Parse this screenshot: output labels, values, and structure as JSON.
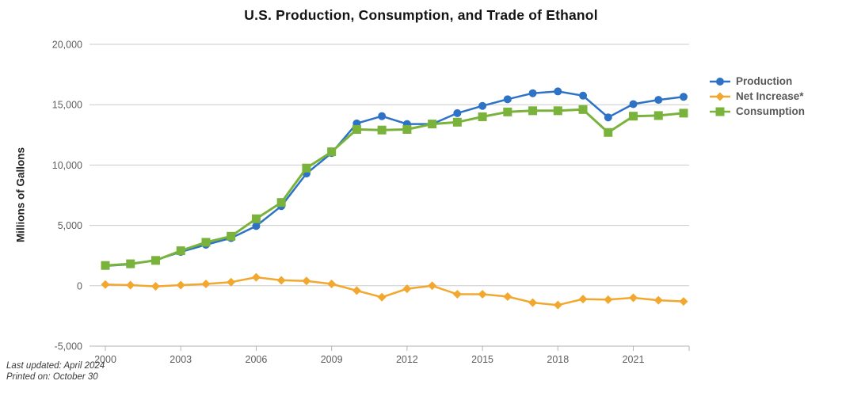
{
  "title": "U.S. Production, Consumption, and Trade of Ethanol",
  "y_axis_label": "Millions of Gallons",
  "footer": {
    "line1": "Last updated: April 2024",
    "line2": "Printed on: October 30"
  },
  "chart_data": {
    "type": "line",
    "title": "U.S. Production, Consumption, and Trade of Ethanol",
    "xlabel": "",
    "ylabel": "Millions of Gallons",
    "grid": true,
    "legend_position": "right",
    "ylim": [
      -5000,
      20000
    ],
    "y_ticks": [
      -5000,
      0,
      5000,
      10000,
      15000,
      20000
    ],
    "x_ticks": [
      2000,
      2003,
      2006,
      2009,
      2012,
      2015,
      2018,
      2021
    ],
    "x": [
      2000,
      2001,
      2002,
      2003,
      2004,
      2005,
      2006,
      2007,
      2008,
      2009,
      2010,
      2011,
      2012,
      2013,
      2014,
      2015,
      2016,
      2017,
      2018,
      2019,
      2020,
      2021,
      2022,
      2023
    ],
    "series": [
      {
        "name": "Production",
        "color": "#2E72C6",
        "marker": "circle",
        "values": [
          1650,
          1780,
          2130,
          2800,
          3400,
          3950,
          4950,
          6600,
          9300,
          11000,
          13450,
          14050,
          13400,
          13400,
          14300,
          14900,
          15450,
          15950,
          16100,
          15750,
          13950,
          15050,
          15400,
          15650
        ]
      },
      {
        "name": "Net Increase*",
        "color": "#F2A82F",
        "marker": "diamond",
        "values": [
          100,
          50,
          -50,
          50,
          150,
          300,
          700,
          450,
          400,
          150,
          -400,
          -950,
          -250,
          0,
          -700,
          -700,
          -900,
          -1400,
          -1600,
          -1100,
          -1150,
          -1000,
          -1200,
          -1300
        ]
      },
      {
        "name": "Consumption",
        "color": "#79B33C",
        "marker": "square",
        "values": [
          1680,
          1820,
          2100,
          2900,
          3600,
          4100,
          5550,
          6900,
          9750,
          11100,
          12950,
          12900,
          12950,
          13400,
          13550,
          14000,
          14400,
          14500,
          14500,
          14600,
          12700,
          14050,
          14100,
          14300
        ]
      }
    ],
    "grid_color": "#cccccc",
    "axis_color": "#b5b5b5"
  }
}
